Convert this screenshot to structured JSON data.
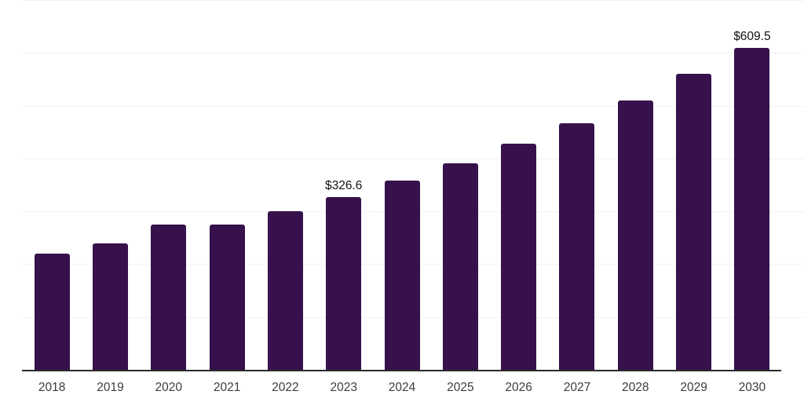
{
  "chart_data": {
    "type": "bar",
    "title": "",
    "xlabel": "",
    "ylabel": "",
    "categories": [
      "2018",
      "2019",
      "2020",
      "2021",
      "2022",
      "2023",
      "2024",
      "2025",
      "2026",
      "2027",
      "2028",
      "2029",
      "2030"
    ],
    "values": [
      220,
      239.5,
      275.5,
      275.5,
      300.5,
      326.6,
      358,
      391,
      428,
      467,
      510,
      560,
      609.5
    ],
    "data_labels": {
      "2023": "$326.6",
      "2030": "$609.5"
    },
    "ylim": [
      0,
      700
    ],
    "grid": "horizontal gridlines every 100 units, no y-axis tick labels",
    "legend": "none"
  },
  "colors": {
    "bar": "#36114b",
    "axis_line": "#2b2b2b",
    "gridline": "#f2f2f2",
    "tick_label": "#3c3c3c",
    "data_label": "#111111",
    "background": "#ffffff"
  }
}
